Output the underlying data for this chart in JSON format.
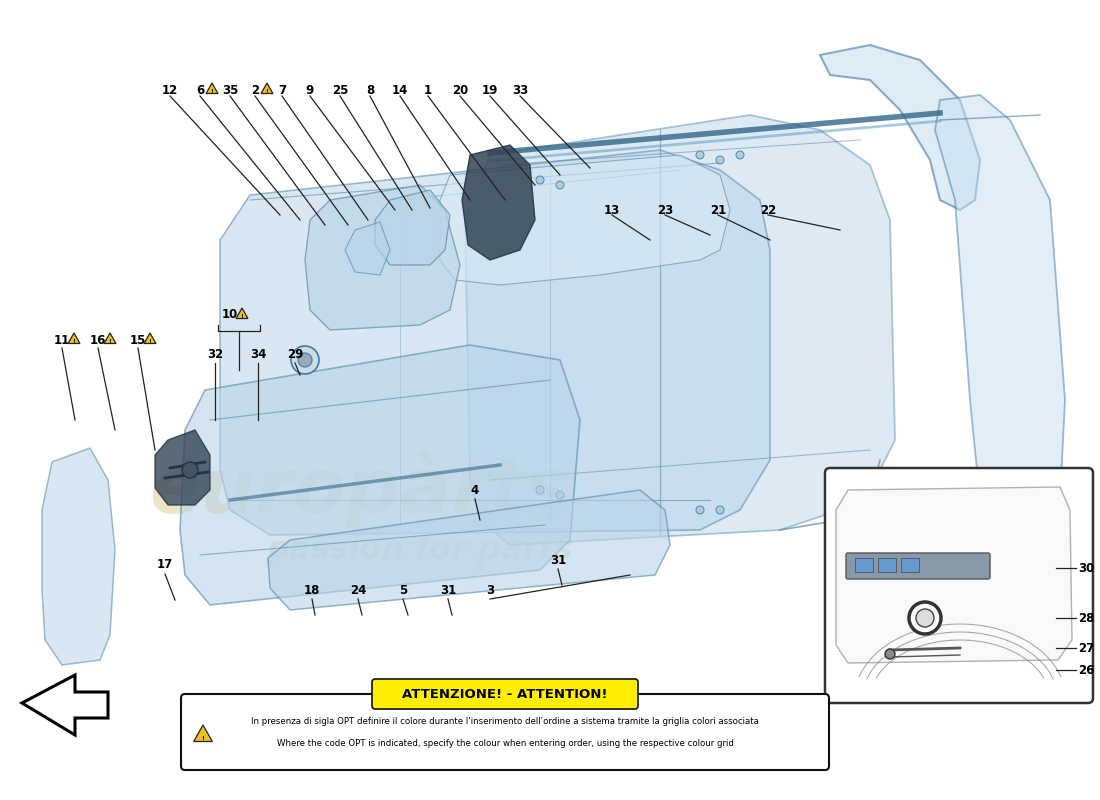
{
  "background_color": "#ffffff",
  "door_fill_color": "#b8d4e8",
  "door_fill_alpha": 0.55,
  "door_edge_color": "#5588aa",
  "line_color": "#222222",
  "watermark_color": "#d8cf90",
  "triangle_color": "#f0c020",
  "triangle_stroke": "#222222",
  "warning_bg": "#ffee00",
  "warning_border": "#111111",
  "inset_box_color": "#ffffff",
  "inset_box_border": "#333333",
  "warning_title": "ATTENZIONE! - ATTENTION!",
  "warning_line1": "In presenza di sigla OPT definire il colore durante l'inserimento dell'ordine a sistema tramite la griglia colori associata",
  "warning_line2": "Where the code OPT is indicated, specify the colour when entering order, using the respective colour grid"
}
